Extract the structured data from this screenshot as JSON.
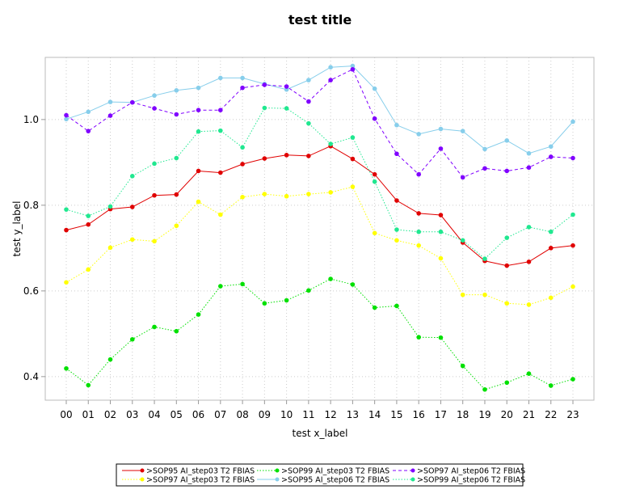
{
  "chart_data": {
    "type": "line",
    "title": "test title",
    "xlabel": "test x_label",
    "ylabel": "test y_label",
    "categories": [
      "00",
      "01",
      "02",
      "03",
      "04",
      "05",
      "06",
      "07",
      "08",
      "09",
      "10",
      "11",
      "12",
      "13",
      "14",
      "15",
      "16",
      "17",
      "18",
      "19",
      "20",
      "21",
      "22",
      "23"
    ],
    "yticks": [
      "0.4",
      "0.6",
      "0.8",
      "1.0"
    ],
    "ytick_values": [
      0.4,
      0.6,
      0.8,
      1.0
    ],
    "ylim": [
      0.345,
      1.145
    ],
    "grid": true,
    "legend_position": "bottom",
    "series": [
      {
        "name": ">SOP95 AI_step03 T2 FBIAS",
        "color": "#e00000",
        "dash": "solid",
        "values": [
          0.742,
          0.755,
          0.791,
          0.796,
          0.823,
          0.825,
          0.88,
          0.876,
          0.896,
          0.909,
          0.917,
          0.915,
          0.938,
          0.908,
          0.872,
          0.811,
          0.781,
          0.777,
          0.713,
          0.67,
          0.659,
          0.668,
          0.7,
          0.706
        ]
      },
      {
        "name": ">SOP97 AI_step03 T2 FBIAS",
        "color": "#ffff00",
        "dash": "dotted",
        "values": [
          0.62,
          0.65,
          0.701,
          0.72,
          0.716,
          0.752,
          0.808,
          0.778,
          0.819,
          0.826,
          0.821,
          0.826,
          0.83,
          0.843,
          0.735,
          0.718,
          0.706,
          0.676,
          0.591,
          0.591,
          0.571,
          0.568,
          0.584,
          0.61
        ]
      },
      {
        "name": ">SOP99 AI_step03 T2 FBIAS",
        "color": "#00e000",
        "dash": "dotted",
        "values": [
          0.419,
          0.38,
          0.44,
          0.487,
          0.516,
          0.506,
          0.545,
          0.611,
          0.616,
          0.571,
          0.578,
          0.601,
          0.628,
          0.615,
          0.561,
          0.565,
          0.492,
          0.491,
          0.425,
          0.37,
          0.386,
          0.407,
          0.379,
          0.394
        ]
      },
      {
        "name": ">SOP95 AI_step06 T2 FBIAS",
        "color": "#87ceeb",
        "dash": "solid",
        "values": [
          1.001,
          1.018,
          1.041,
          1.04,
          1.056,
          1.068,
          1.074,
          1.097,
          1.097,
          1.083,
          1.07,
          1.092,
          1.122,
          1.125,
          1.072,
          0.987,
          0.966,
          0.978,
          0.973,
          0.931,
          0.951,
          0.921,
          0.937,
          0.995
        ]
      },
      {
        "name": ">SOP97 AI_step06 T2 FBIAS",
        "color": "#8000ff",
        "dash": "dashed",
        "values": [
          1.01,
          0.973,
          1.009,
          1.04,
          1.026,
          1.012,
          1.022,
          1.022,
          1.074,
          1.081,
          1.077,
          1.042,
          1.092,
          1.117,
          1.002,
          0.92,
          0.872,
          0.932,
          0.865,
          0.886,
          0.88,
          0.888,
          0.913,
          0.91
        ]
      },
      {
        "name": ">SOP99 AI_step06 T2 FBIAS",
        "color": "#20e890",
        "dash": "dotted",
        "values": [
          0.79,
          0.775,
          0.797,
          0.868,
          0.897,
          0.91,
          0.972,
          0.974,
          0.935,
          1.027,
          1.026,
          0.991,
          0.943,
          0.958,
          0.855,
          0.743,
          0.738,
          0.738,
          0.718,
          0.675,
          0.724,
          0.749,
          0.738,
          0.778
        ]
      }
    ]
  }
}
